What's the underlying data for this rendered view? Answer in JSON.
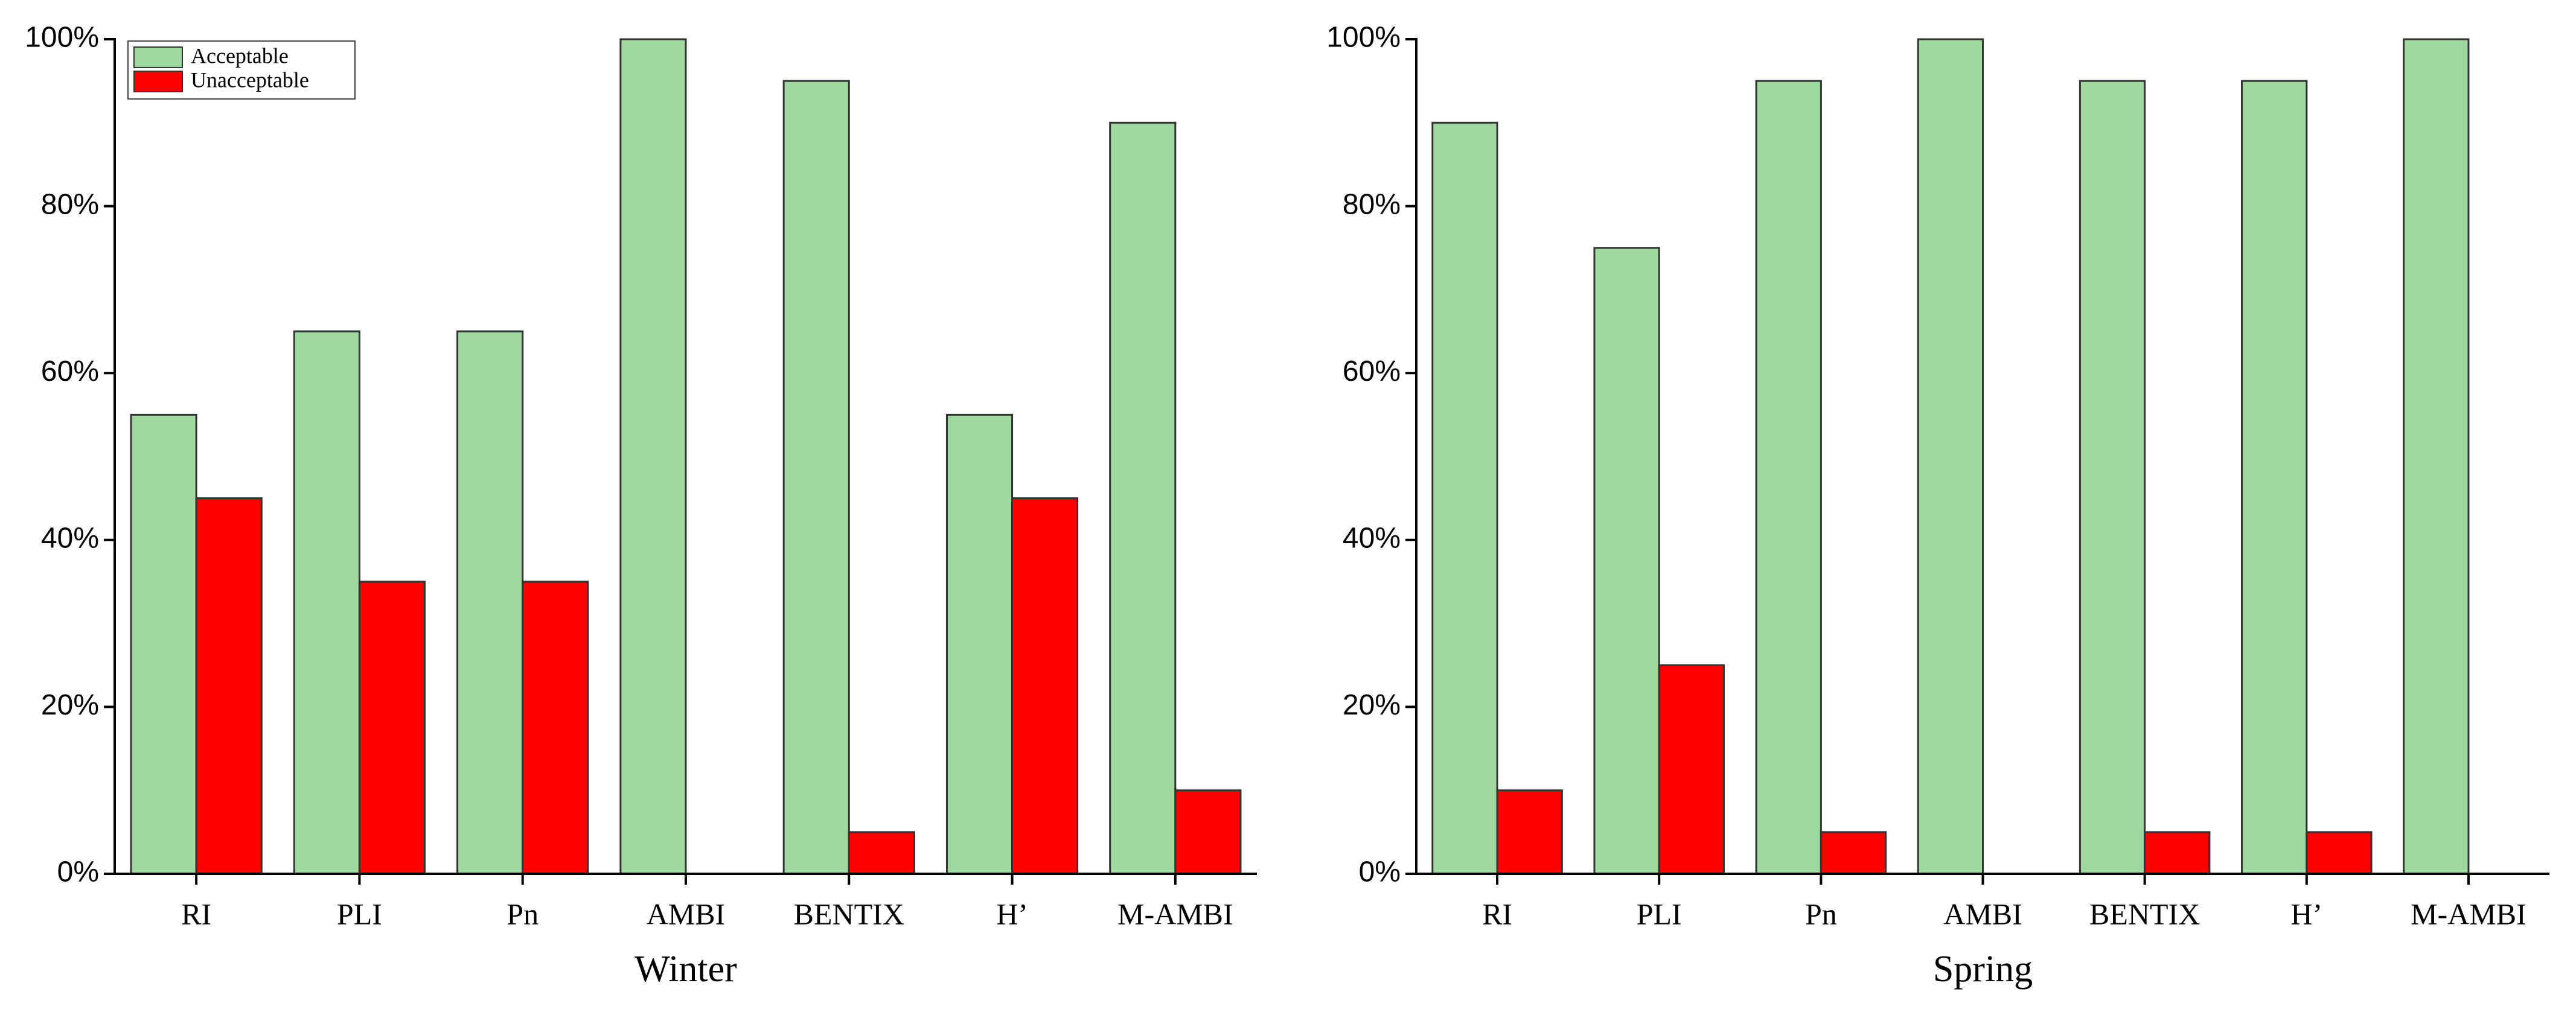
{
  "chart_data": [
    {
      "type": "bar",
      "x_label": "Winter",
      "categories": [
        "RI",
        "PLI",
        "Pn",
        "AMBI",
        "BENTIX",
        "H’",
        "M-AMBI"
      ],
      "series": [
        {
          "name": "Acceptable",
          "color": "#9fd99f",
          "values": [
            55,
            65,
            65,
            100,
            95,
            55,
            90
          ]
        },
        {
          "name": "Unacceptable",
          "color": "#ff0000",
          "values": [
            45,
            35,
            35,
            0,
            5,
            45,
            10
          ]
        }
      ],
      "ylim": [
        0,
        100
      ],
      "yticks": [
        {
          "value": 0,
          "label": "0%"
        },
        {
          "value": 20,
          "label": "20%"
        },
        {
          "value": 40,
          "label": "40%"
        },
        {
          "value": 60,
          "label": "60%"
        },
        {
          "value": 80,
          "label": "80%"
        },
        {
          "value": 100,
          "label": "100%"
        }
      ],
      "legend": "upper left"
    },
    {
      "type": "bar",
      "x_label": "Spring",
      "categories": [
        "RI",
        "PLI",
        "Pn",
        "AMBI",
        "BENTIX",
        "H’",
        "M-AMBI"
      ],
      "series": [
        {
          "name": "Acceptable",
          "color": "#9fd99f",
          "values": [
            90,
            75,
            95,
            100,
            95,
            95,
            100
          ]
        },
        {
          "name": "Unacceptable",
          "color": "#ff0000",
          "values": [
            10,
            25,
            5,
            0,
            5,
            5,
            0
          ]
        }
      ],
      "ylim": [
        0,
        100
      ],
      "yticks": [
        {
          "value": 0,
          "label": "0%"
        },
        {
          "value": 20,
          "label": "20%"
        },
        {
          "value": 40,
          "label": "40%"
        },
        {
          "value": 60,
          "label": "60%"
        },
        {
          "value": 80,
          "label": "80%"
        },
        {
          "value": 100,
          "label": "100%"
        }
      ]
    }
  ]
}
